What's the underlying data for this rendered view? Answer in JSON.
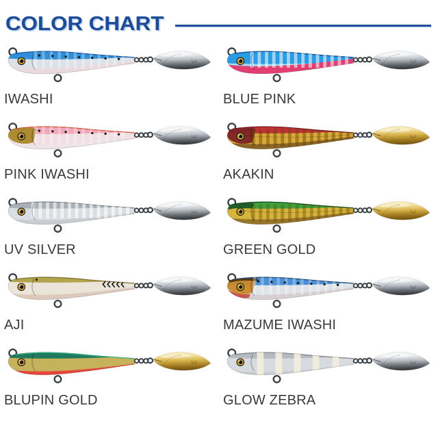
{
  "page": {
    "background": "#ffffff"
  },
  "header": {
    "title": "COLOR CHART",
    "text_color": "#1e4a97",
    "glow_color": "#aecdea",
    "rule_color": "#1e4a97"
  },
  "label_color": "#3a3a3a",
  "lure_common": {
    "hardware": "#3a3f44",
    "eye_ring": "#caa23d",
    "eye_pupil": "#12100a"
  },
  "blade": {
    "mark": "3",
    "silver": [
      "#ffffff",
      "#eceff1",
      "#b9bfc5",
      "#6b7076",
      "#3a3e42"
    ],
    "gold": [
      "#fdf6d4",
      "#f3e19c",
      "#d9b44e",
      "#a57d22",
      "#7a5a14"
    ]
  },
  "lures": [
    {
      "label": "IWASHI",
      "blade": "silver",
      "pattern": "dots",
      "pattern_color": "#141414",
      "back_depth": 17,
      "belly_start": 30,
      "colors": {
        "back": "#2f8fd8",
        "back_edge": "#0f5cae",
        "body": "#dde2e8",
        "belly": "#e8dade"
      }
    },
    {
      "label": "BLUE PINK",
      "blade": "silver",
      "pattern": "ribs-light",
      "pattern_color": "rgba(255,255,255,0.55)",
      "back_depth": 24,
      "belly_start": 27,
      "colors": {
        "back": "#2a9ce4",
        "back_edge": "#0e4f9e",
        "body": "#a6d9f2",
        "belly": "#e23e72"
      }
    },
    {
      "label": "PINK IWASHI",
      "blade": "silver",
      "pattern": "dots",
      "pattern_color": "#141414",
      "back_depth": 16,
      "belly_start": 31,
      "head_style": "full",
      "colors": {
        "back": "#f2a6bb",
        "back_edge": "#e85936",
        "body": "#f1dfe6",
        "belly": "#eee3e6",
        "head": "#a8882a"
      }
    },
    {
      "label": "AKAKIN",
      "blade": "gold",
      "pattern": "ribs-dark",
      "pattern_color": "rgba(105,70,5,0.45)",
      "back_depth": 15,
      "belly_start": 31,
      "head_style": "full",
      "colors": {
        "back": "#c03138",
        "back_edge": "#871b22",
        "body": "#d8a838",
        "belly": "#8a6428",
        "head": "#7c2326"
      }
    },
    {
      "label": "UV SILVER",
      "blade": "silver",
      "pattern": "ribs-light",
      "pattern_color": "rgba(255,255,255,0.6)",
      "back_depth": 15,
      "belly_start": 32,
      "colors": {
        "back": "#a9b0b7",
        "back_edge": "#868d94",
        "body": "#dadee2",
        "belly": "#c9cdd1"
      }
    },
    {
      "label": "GREEN GOLD",
      "blade": "gold",
      "pattern": "ribs-dark",
      "pattern_color": "rgba(110,80,0,0.4)",
      "back_depth": 15,
      "belly_start": 31,
      "head_style": "top",
      "colors": {
        "back": "#3aa33f",
        "back_edge": "#14501f",
        "body": "#d6b33c",
        "belly": "#97762c",
        "head": "#1c5a26"
      }
    },
    {
      "label": "AJI",
      "blade": "silver",
      "pattern": "chevrons",
      "pattern_color": "#1c1c1c",
      "back_depth": 13,
      "belly_start": 31,
      "colors": {
        "back": "#b3a34c",
        "back_edge": "#8a7c34",
        "body": "#eae5d8",
        "belly": "#decabd"
      }
    },
    {
      "label": "MAZUME IWASHI",
      "blade": "silver",
      "pattern": "dots",
      "pattern_color": "#141414",
      "back_depth": 17,
      "belly_start": 31,
      "head_style": "full",
      "colors": {
        "back": "#4a90d8",
        "back_edge": "#24527e",
        "body": "#dfe3e8",
        "belly": "#d8cfd2",
        "head": "#c8872b",
        "head_dark": "#4b3209",
        "accent": "#c5413a"
      }
    },
    {
      "label": "BLUPIN GOLD",
      "blade": "gold",
      "pattern": "none",
      "back_depth": 14,
      "belly_start": 33,
      "colors": {
        "back": "#1f7a60",
        "back_edge": "#2fc08a",
        "body": "#c7b25c",
        "belly": "#e6443c"
      }
    },
    {
      "label": "GLOW ZEBRA",
      "blade": "silver",
      "pattern": "zebra",
      "pattern_color": "#f3eedd",
      "back_depth": 14,
      "belly_start": 34,
      "colors": {
        "back": "#b4bac0",
        "back_edge": "#8d939a",
        "body": "#d7dbdf",
        "belly": "#c8ccd0"
      }
    }
  ]
}
